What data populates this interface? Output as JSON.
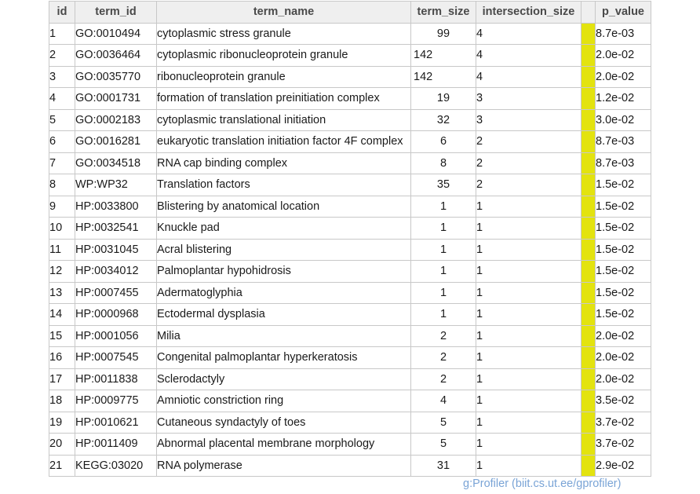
{
  "table": {
    "headers": [
      "id",
      "term_id",
      "term_name",
      "term_size",
      "intersection_size",
      "",
      "p_value"
    ],
    "rows": [
      {
        "id": "1",
        "term_id": "GO:0010494",
        "term_name": "cytoplasmic stress granule",
        "term_size": "99",
        "intersection_size": "4",
        "p_value": "8.7e-03"
      },
      {
        "id": "2",
        "term_id": "GO:0036464",
        "term_name": "cytoplasmic ribonucleoprotein granule",
        "term_size": "142",
        "intersection_size": "4",
        "p_value": "2.0e-02"
      },
      {
        "id": "3",
        "term_id": "GO:0035770",
        "term_name": "ribonucleoprotein granule",
        "term_size": "142",
        "intersection_size": "4",
        "p_value": "2.0e-02"
      },
      {
        "id": "4",
        "term_id": "GO:0001731",
        "term_name": "formation of translation preinitiation complex",
        "term_size": "19",
        "intersection_size": "3",
        "p_value": "1.2e-02"
      },
      {
        "id": "5",
        "term_id": "GO:0002183",
        "term_name": "cytoplasmic translational initiation",
        "term_size": "32",
        "intersection_size": "3",
        "p_value": "3.0e-02"
      },
      {
        "id": "6",
        "term_id": "GO:0016281",
        "term_name": "eukaryotic translation initiation factor 4F complex",
        "term_size": "6",
        "intersection_size": "2",
        "p_value": "8.7e-03"
      },
      {
        "id": "7",
        "term_id": "GO:0034518",
        "term_name": "RNA cap binding complex",
        "term_size": "8",
        "intersection_size": "2",
        "p_value": "8.7e-03"
      },
      {
        "id": "8",
        "term_id": "WP:WP32",
        "term_name": "Translation factors",
        "term_size": "35",
        "intersection_size": "2",
        "p_value": "1.5e-02"
      },
      {
        "id": "9",
        "term_id": "HP:0033800",
        "term_name": "Blistering by anatomical location",
        "term_size": "1",
        "intersection_size": "1",
        "p_value": "1.5e-02"
      },
      {
        "id": "10",
        "term_id": "HP:0032541",
        "term_name": "Knuckle pad",
        "term_size": "1",
        "intersection_size": "1",
        "p_value": "1.5e-02"
      },
      {
        "id": "11",
        "term_id": "HP:0031045",
        "term_name": "Acral blistering",
        "term_size": "1",
        "intersection_size": "1",
        "p_value": "1.5e-02"
      },
      {
        "id": "12",
        "term_id": "HP:0034012",
        "term_name": "Palmoplantar hypohidrosis",
        "term_size": "1",
        "intersection_size": "1",
        "p_value": "1.5e-02"
      },
      {
        "id": "13",
        "term_id": "HP:0007455",
        "term_name": "Adermatoglyphia",
        "term_size": "1",
        "intersection_size": "1",
        "p_value": "1.5e-02"
      },
      {
        "id": "14",
        "term_id": "HP:0000968",
        "term_name": "Ectodermal dysplasia",
        "term_size": "1",
        "intersection_size": "1",
        "p_value": "1.5e-02"
      },
      {
        "id": "15",
        "term_id": "HP:0001056",
        "term_name": "Milia",
        "term_size": "2",
        "intersection_size": "1",
        "p_value": "2.0e-02"
      },
      {
        "id": "16",
        "term_id": "HP:0007545",
        "term_name": "Congenital palmoplantar hyperkeratosis",
        "term_size": "2",
        "intersection_size": "1",
        "p_value": "2.0e-02"
      },
      {
        "id": "17",
        "term_id": "HP:0011838",
        "term_name": "Sclerodactyly",
        "term_size": "2",
        "intersection_size": "1",
        "p_value": "2.0e-02"
      },
      {
        "id": "18",
        "term_id": "HP:0009775",
        "term_name": "Amniotic constriction ring",
        "term_size": "4",
        "intersection_size": "1",
        "p_value": "3.5e-02"
      },
      {
        "id": "19",
        "term_id": "HP:0010621",
        "term_name": "Cutaneous syndactyly of toes",
        "term_size": "5",
        "intersection_size": "1",
        "p_value": "3.7e-02"
      },
      {
        "id": "20",
        "term_id": "HP:0011409",
        "term_name": "Abnormal placental membrane morphology",
        "term_size": "5",
        "intersection_size": "1",
        "p_value": "3.7e-02"
      },
      {
        "id": "21",
        "term_id": "KEGG:03020",
        "term_name": "RNA polymerase",
        "term_size": "31",
        "intersection_size": "1",
        "p_value": "2.9e-02"
      }
    ]
  },
  "colors": {
    "bar": "#e3e30f",
    "footer": "#7aa4d6"
  },
  "footer": {
    "credit": "g:Profiler (biit.cs.ut.ee/gprofiler)"
  }
}
